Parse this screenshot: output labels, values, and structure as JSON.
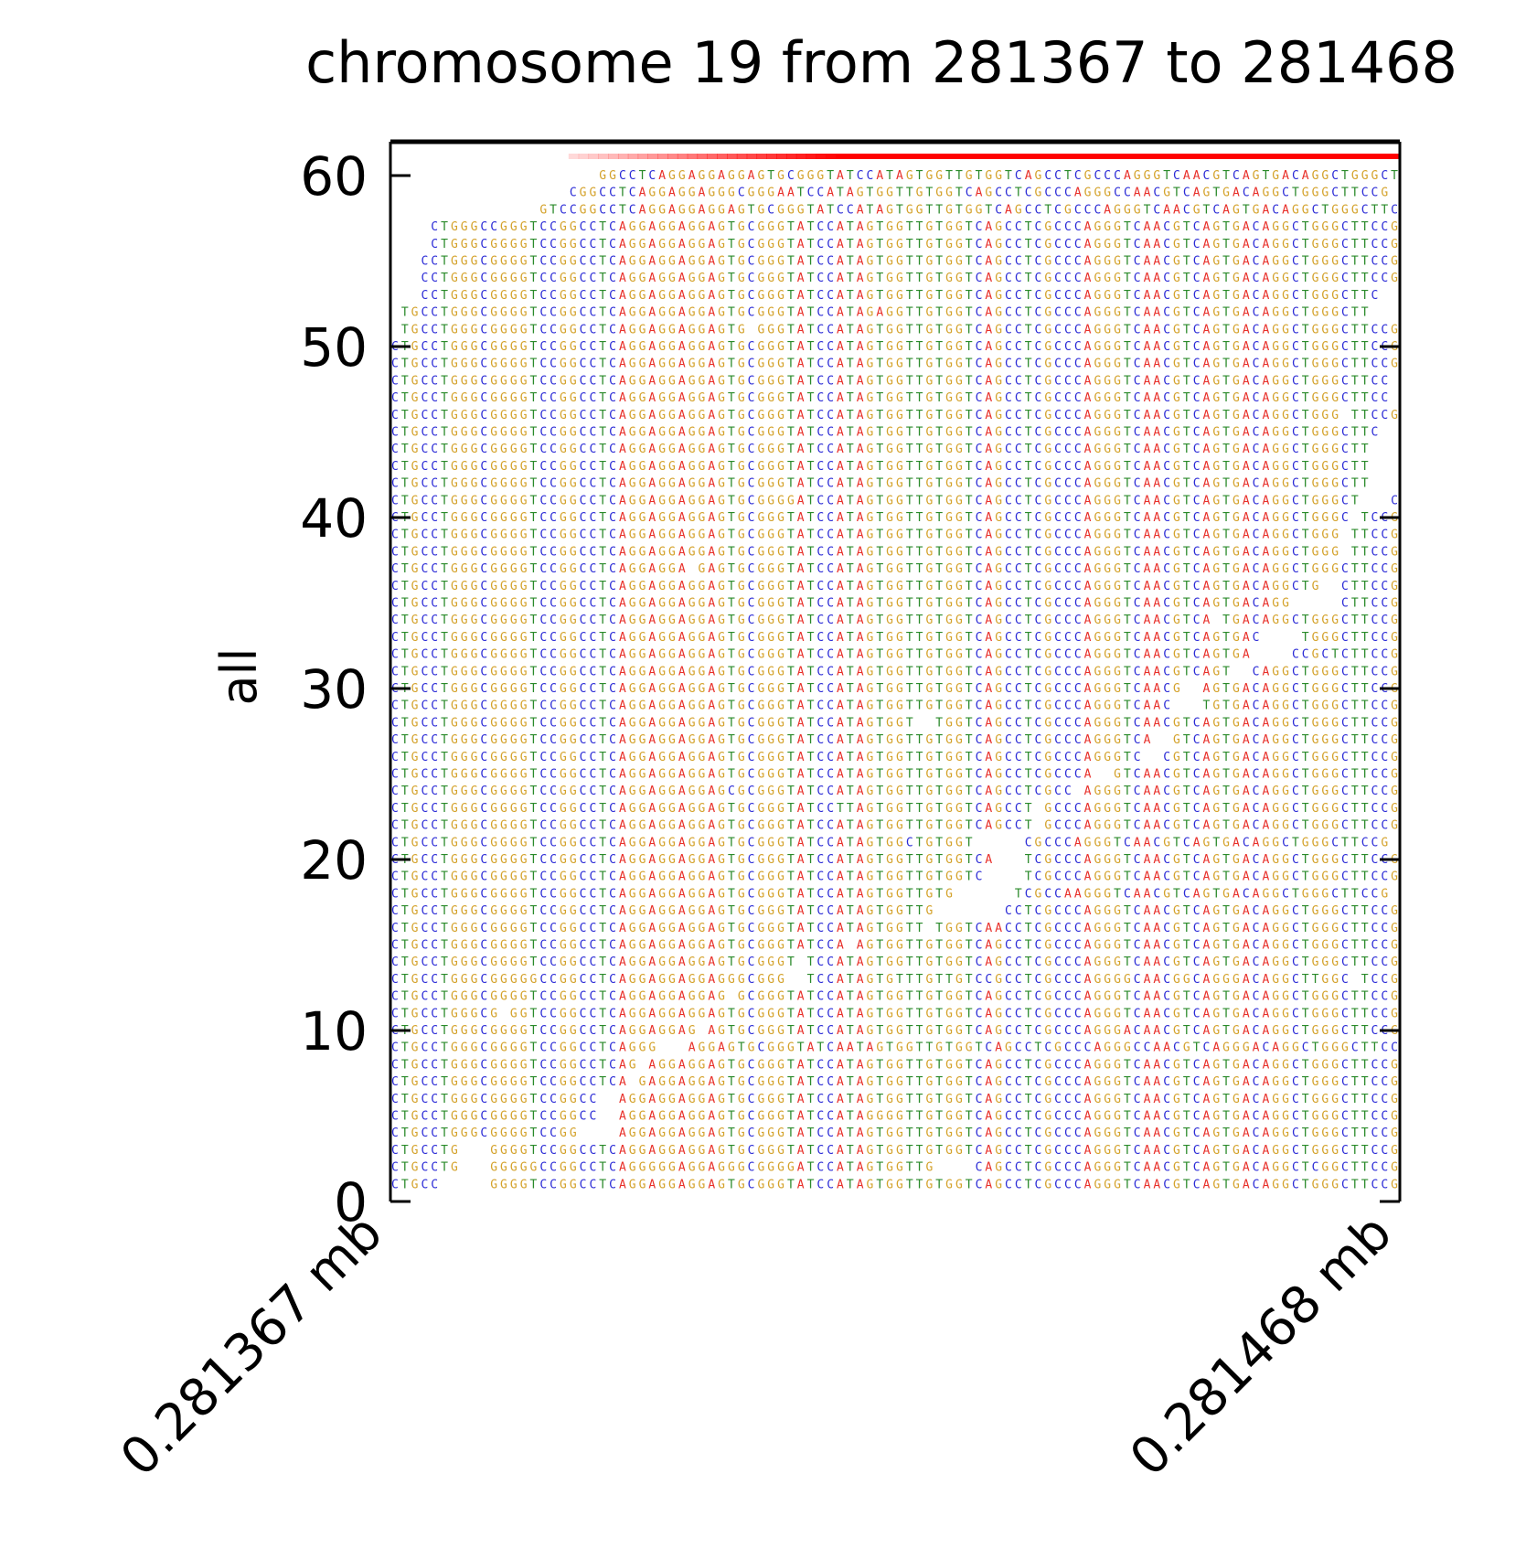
{
  "chart_data": {
    "type": "read-pileup",
    "title": "chromosome 19 from 281367 to 281468",
    "ylabel": "all",
    "xlabel": "",
    "x_ticks": [
      "0.281367 mb",
      "0.281468 mb"
    ],
    "xlim": [
      281367,
      281468
    ],
    "ylim": [
      0,
      62
    ],
    "y_ticks": [
      0,
      10,
      20,
      30,
      40,
      50,
      60
    ],
    "base_colors": {
      "A": "#e8302a",
      "C": "#2b2bd6",
      "G": "#d4a22b",
      "T": "#2a8a2a"
    },
    "coverage_color": "#ff0000",
    "coverage_ramp_start": 281385,
    "coverage_full_from": 281412,
    "reference": "CTGCCTGGGCGGGGTCCGGCCTCAGGAGGAGGAGTGCGGGTATCCATAGTGGTTGTGGTCAGCCTCGCCCAGGGTCAACGTCAGTGACAGGCTGGGCTTCCG",
    "reads": [
      {
        "row": 1,
        "seq": "CTGCC     GGGGTCCGGCCTCAGGAGGAGGAGTGCGGGTATCCATAGTGGTTGTGGTCAGCCTCGCCCAGGGTCAACGTCAGTGACAGGCTGGGCTTCCG"
      },
      {
        "row": 2,
        "seq": "CTGCCTG   GGGGGCCGGCCTCAGGGGGAGGAGGGCGGGGATCCATAGTGGTTG    CAGCCTCGCCCAGGGTCAACGTCAGTGACAGGCTCGGCTTCCG"
      },
      {
        "row": 3,
        "seq": "CTGCCTG   GGGGTCCGGCCTCAGGAGGAGGAGTGCGGGTATCCATAGTGGTTGTGGTCAGCCTCGCCCAGGGTCAACGTCAGTGACAGGCTGGGCTTCCG"
      },
      {
        "row": 4,
        "seq": "CTGCCTGGGCGGGGTCCGG    AGGAGGAGGAGTGCGGGTATCCATAGTGGTTGTGGTCAGCCTCGCCCAGGGTCAACGTCAGTGACAGGCTGGGCTTCCG"
      },
      {
        "row": 5,
        "seq": "CTGCCTGGGCGGGGTCCGGCC  AGGAGGAGGAGTGCGGGTATCCATAGGGGTTGTGGTCAGCCTCGCCCAGGGTCAACGTCAGTGACAGGCTGGGCTTCCG"
      },
      {
        "row": 6,
        "seq": "CTGCCTGGGCGGGGTCCGGCC  AGGAGGAGGAGTGCGGGTATCCATAGTGGTTGTGGTCAGCCTCGCCCAGGGTCAACGTCAGTGACAGGCTGGGCTTCCG"
      },
      {
        "row": 7,
        "seq": "CTGCCTGGGCGGGGTCCGGCCTCA GAGGAGGAGTGCGGGTATCCATAGTGGTTGTGGTCAGCCTCGCCCAGGGTCAACGTCAGTGACAGGCTGGGCTTCCG"
      },
      {
        "row": 8,
        "seq": "CTGCCTGGGCGGGGTCCGGCCTCAG AGGAGGAGTGCGGGTATCCATAGTGGTTGTGGTCAGCCTCGCCCAGGGTCAACGTCAGTGACAGGCTGGGCTTCCG"
      },
      {
        "row": 9,
        "seq": "CTGCCTGGGCGGGGTCCGGCCTCAGGG   AGGAGTGCGGGTATCAATAGTGGTTGTGGTCAGCCTCGCCCAGGGCCAACGTCAGGGACAGGCTGGGCTTCCG"
      },
      {
        "row": 10,
        "seq": "CTGCCTGGGCGGGGTCCGGCCTCAGGAGGAG AGTGCGGGTATCCATAGTGGTTGTGGTCAGCCTCGCCCAGGGACAACGTCAGTGACAGGCTGGGCTTCCG"
      },
      {
        "row": 11,
        "seq": "CTGCCTGGGCG GGTCCGGCCTCAGGAGGAGGAGTGCGGGTATCCATAGTGGTTGTGGTCAGCCTCGCCCAGGGTCAACGTCAGTGACAGGCTGGGCTTCCG"
      },
      {
        "row": 12,
        "seq": "CTGCCTGGGCGGGGTCCGGCCTCAGGAGGAGGAG GCGGGTATCCATAGTGGTTGTGGTCAGCCTCGCCCAGGGTCAACGTCAGTGACAGGCTGGGCTTCCG"
      },
      {
        "row": 13,
        "seq": "CTGCCTGGGCGGGGGCCGGCCTCAGGAGGAGGAGGGCGGG  TCCATAGTGTTTGTTGTCCGCCTCGCCCAGGGGCAACGGCAGGGACAGGCTTGGC TCCG"
      },
      {
        "row": 14,
        "seq": "CTGCCTGGGCGGGGTCCGGCCTCAGGAGGAGGAGTGCGGGT TCCATAGTGGTTGTGGTCAGCCTCGCCCAGGGTCAACGTCAGTGACAGGCTGGGCTTCCG"
      },
      {
        "row": 15,
        "seq": "CTGCCTGGGCGGGGTCCGGCCTCAGGAGGAGGAGTGCGGGTATCCA AGTGGTTGTGGTCAGCCTCGCCCAGGGTCAACGTCAGTGACAGGCTGGGCTTCCG"
      },
      {
        "row": 16,
        "seq": "CTGCCTGGGCGGGGTCCGGCCTCAGGAGGAGGAGTGCGGGTATCCATAGTGGTT TGGTCAACCTCGCCCAGGGTCAACGTCAGTGACAGGCTGGGCTTCCG"
      },
      {
        "row": 17,
        "seq": "CTGCCTGGGCGGGGTCCGGCCTCAGGAGGAGGAGTGCGGGTATCCATAGTGGTTG       CCTCGCCCAGGGTCAACGTCAGTGACAGGCTGGGCTTCCG"
      },
      {
        "row": 18,
        "seq": "CTGCCTGGGCGGGGTCCGGCCTCAGGAGGAGGAGTGCGGGTATCCATAGTGGTTGTG      TCGCCAAGGGTCAACGTCAGTGACAGGCTGGGCTTCCG"
      },
      {
        "row": 19,
        "seq": "CTGCCTGGGCGGGGTCCGGCCTCAGGAGGAGGAGTGCGGGTATCCATAGTGGTTGTGGTC    TCGCCCAGGGTCAACGTCAGTGACAGGCTGGGCTTCCG"
      },
      {
        "row": 20,
        "seq": "CTGCCTGGGCGGGGTCCGGCCTCAGGAGGAGGAGTGCGGGTATCCATAGTGGTTGTGGTCA   TCGCCCAGGGTCAACGTCAGTGACAGGCTGGGCTTCCG"
      },
      {
        "row": 21,
        "seq": "CTGCCTGGGCGGGGTCCGGCCTCAGGAGGAGGAGTGCGGGTATCCATAGTGGCTGTGGT     CGCCCAGGGTCAACGTCAGTGACAGGCTGGGCTTCCG"
      },
      {
        "row": 22,
        "seq": "CTGCCTGGGCGGGGTCCGGCCTCAGGAGGAGGAGTGCGGGTATCCATAGTGGTTGTGGTCAGCCT GCCCAGGGTCAACGTCAGTGACAGGCTGGGCTTCCG"
      },
      {
        "row": 23,
        "seq": "CTGCCTGGGCGGGGTCCGGCCTCAGGAGGAGGAGTGCGGGTATCCTTAGTGGTTGTGGTCAGCCT GCCCAGGGTCAACGTCAGTGACAGGCTGGGCTTCCG"
      },
      {
        "row": 24,
        "seq": "CTGCCTGGGCGGGGTCCGGCCTCAGGAGGAGGAGCGCGGGTATCCATAGTGGTTGTGGTCAGCCTCGCC AGGGTCAACGTCAGTGACAGGCTGGGCTTCCG"
      },
      {
        "row": 25,
        "seq": "CTGCCTGGGCGGGGTCCGGCCTCAGGAGGAGGAGTGCGGGTATCCATAGTGGTTGTGGTCAGCCTCGCCCA  GTCAACGTCAGTGACAGGCTGGGCTTCCG"
      },
      {
        "row": 26,
        "seq": "CTGCCTGGGCGGGGTCCGGCCTCAGGAGGAGGAGTGCGGGTATCCATAGTGGTTGTGGTCAGCCTCGCCCAGGGTC  CGTCAGTGACAGGCTGGGCTTCCG"
      },
      {
        "row": 27,
        "seq": "CTGCCTGGGCGGGGTCCGGCCTCAGGAGGAGGAGTGCGGGTATCCATAGTGGTTGTGGTCAGCCTCGCCCAGGGTCA  GTCAGTGACAGGCTGGGCTTCCG"
      },
      {
        "row": 28,
        "seq": "CTGCCTGGGCGGGGTCCGGCCTCAGGAGGAGGAGTGCGGGTATCCATAGTGGT  TGGTCAGCCTCGCCCAGGGTCAACGTCAGTGACAGGCTGGGCTTCCG"
      },
      {
        "row": 29,
        "seq": "CTGCCTGGGCGGGGTCCGGCCTCAGGAGGAGGAGTGCGGGTATCCATAGTGGTTGTGGTCAGCCTCGCCCAGGGTCAAC   TGTGACAGGCTGGGCTTCCG"
      },
      {
        "row": 30,
        "seq": "CTGCCTGGGCGGGGTCCGGCCTCAGGAGGAGGAGTGCGGGTATCCATAGTGGTTGTGGTCAGCCTCGCCCAGGGTCAACG  AGTGACAGGCTGGGCTTCCG"
      },
      {
        "row": 31,
        "seq": "CTGCCTGGGCGGGGTCCGGCCTCAGGAGGAGGAGTGCGGGTATCCATAGTGGTTGTGGTCAGCCTCGCCCAGGGTCAACGTCAGT  CAGGCTGGGCTTCCG"
      },
      {
        "row": 32,
        "seq": "CTGCCTGGGCGGGGTCCGGCCTCAGGAGGAGGAGTGCGGGTATCCATAGTGGTTGTGGTCAGCCTCGCCCAGGGTCAACGTCAGTGA    CCGCTCTTCCG"
      },
      {
        "row": 33,
        "seq": "CTGCCTGGGCGGGGTCCGGCCTCAGGAGGAGGAGTGCGGGTATCCATAGTGGTTGTGGTCAGCCTCGCCCAGGGTCAACGTCAGTGAC    TGGGCTTCCG"
      },
      {
        "row": 34,
        "seq": "CTGCCTGGGCGGGGTCCGGCCTCAGGAGGAGGAGTGCGGGTATCCATAGTGGTTGTGGTCAGCCTCGCCCAGGGTCAACGTCA TGACAGGCTGGGCTTCCG"
      },
      {
        "row": 35,
        "seq": "CTGCCTGGGCGGGGTCCGGCCTCAGGAGGAGGAGTGCGGGTATCCATAGTGGTTGTGGTCAGCCTCGCCCAGGGTCAACGTCAGTGACAGG     CTTCCG"
      },
      {
        "row": 36,
        "seq": "CTGCCTGGGCGGGGTCCGGCCTCAGGAGGAGGAGTGCGGGTATCCATAGTGGTTGTGGTCAGCCTCGCCCAGGGTCAACGTCAGTGACAGGCTG  CTTCCG"
      },
      {
        "row": 37,
        "seq": "CTGCCTGGGCGGGGTCCGGCCTCAGGAGGA GAGTGCGGGTATCCATAGTGGTTGTGGTCAGCCTCGCCCAGGGTCAACGTCAGTGACAGGCTGGGCTTCCG"
      },
      {
        "row": 38,
        "seq": "CTGCCTGGGCGGGGTCCGGCCTCAGGAGGAGGAGTGCGGGTATCCATAGTGGTTGTGGTCAGCCTCGCCCAGGGTCAACGTCAGTGACAGGCTGGG TTCCG"
      },
      {
        "row": 39,
        "seq": "CTGCCTGGGCGGGGTCCGGCCTCAGGAGGAGGAGTGCGGGTATCCATAGTGGTTGTGGTCAGCCTCGCCCAGGGTCAACGTCAGTGACAGGCTGGG TTCCG"
      },
      {
        "row": 40,
        "seq": "CTGCCTGGGCGGGGTCCGGCCTCAGGAGGAGGAGTGCGGGTATCCATAGTGGTTGTGGTCAGCCTCGCCCAGGGTCAACGTCAGTGACAGGCTGGGC TCCG"
      },
      {
        "row": 41,
        "seq": "CTGCCTGGGCGGGGTCCGGCCTCAGGAGGAGGAGTGCGGGGATCCATAGTGGTTGTGGTCAGCCTCGCCCAGGGTCAACGTCAGTGACAGGCTGGGCT   CG"
      },
      {
        "row": 42,
        "seq": "CTGCCTGGGCGGGGTCCGGCCTCAGGAGGAGGAGTGCGGGTATCCATAGTGGTTGTGGTCAGCCTCGCCCAGGGTCAACGTCAGTGACAGGCTGGGCTT"
      },
      {
        "row": 43,
        "seq": "CTGCCTGGGCGGGGTCCGGCCTCAGGAGGAGGAGTGCGGGTATCCATAGTGGTTGTGGTCAGCCTCGCCCAGGGTCAACGTCAGTGACAGGCTGGGCTT"
      },
      {
        "row": 44,
        "seq": "CTGCCTGGGCGGGGTCCGGCCTCAGGAGGAGGAGTGCGGGTATCCATAGTGGTTGTGGTCAGCCTCGCCCAGGGTCAACGTCAGTGACAGGCTGGGCTT"
      },
      {
        "row": 45,
        "seq": "CTGCCTGGGCGGGGTCCGGCCTCAGGAGGAGGAGTGCGGGTATCCATAGTGGTTGTGGTCAGCCTCGCCCAGGGTCAACGTCAGTGACAGGCTGGGCTTC"
      },
      {
        "row": 46,
        "seq": "CTGCCTGGGCGGGGTCCGGCCTCAGGAGGAGGAGTGCGGGTATCCATAGTGGTTGTGGTCAGCCTCGCCCAGGGTCAACGTCAGTGACAGGCTGGG TTCCG"
      },
      {
        "row": 47,
        "seq": "CTGCCTGGGCGGGGTCCGGCCTCAGGAGGAGGAGTGCGGGTATCCATAGTGGTTGTGGTCAGCCTCGCCCAGGGTCAACGTCAGTGACAGGCTGGGCTTCC"
      },
      {
        "row": 48,
        "seq": "CTGCCTGGGCGGGGTCCGGCCTCAGGAGGAGGAGTGCGGGTATCCATAGTGGTTGTGGTCAGCCTCGCCCAGGGTCAACGTCAGTGACAGGCTGGGCTTCC"
      },
      {
        "row": 49,
        "seq": "CTGCCTGGGCGGGGTCCGGCCTCAGGAGGAGGAGTGCGGGTATCCATAGTGGTTGTGGTCAGCCTCGCCCAGGGTCAACGTCAGTGACAGGCTGGGCTTCCG"
      },
      {
        "row": 50,
        "seq": "CTGCCTGGGCGGGGTCCGGCCTCAGGAGGAGGAGTGCGGGTATCCATAGTGGTTGTGGTCAGCCTCGCCCAGGGTCAACGTCAGTGACAGGCTGGGCTTCCG"
      },
      {
        "row": 51,
        "seq": " TGCCTGGGCGGGGTCCGGCCTCAGGAGGAGGAGTG GGGTATCCATAGTGGTTGTGGTCAGCCTCGCCCAGGGTCAACGTCAGTGACAGGCTGGGCTTCCG"
      },
      {
        "row": 52,
        "seq": " TGCCTGGGCGGGGTCCGGCCTCAGGAGGAGGAGTGCGGGTATCCATAGAGGTTGTGGTCAGCCTCGCCCAGGGTCAACGTCAGTGACAGGCTGGGCTT"
      },
      {
        "row": 53,
        "seq": "   CCTGGGCGGGGTCCGGCCTCAGGAGGAGGAGTGCGGGTATCCATAGTGGTTGTGGTCAGCCTCGCCCAGGGTCAACGTCAGTGACAGGCTGGGCTTC"
      },
      {
        "row": 54,
        "seq": "   CCTGGGCGGGGTCCGGCCTCAGGAGGAGGAGTGCGGGTATCCATAGTGGTTGTGGTCAGCCTCGCCCAGGGTCAACGTCAGTGACAGGCTGGGCTTCCG"
      },
      {
        "row": 55,
        "seq": "   CCTGGGCGGGGTCCGGCCTCAGGAGGAGGAGTGCGGGTATCCATAGTGGTTGTGGTCAGCCTCGCCCAGGGTCAACGTCAGTGACAGGCTGGGCTTCCG"
      },
      {
        "row": 56,
        "seq": "    CTGGGCGGGGTCCGGCCTCAGGAGGAGGAGTGCGGGTATCCATAGTGGTTGTGGTCAGCCTCGCCCAGGGTCAACGTCAGTGACAGGCTGGGCTTCCG"
      },
      {
        "row": 57,
        "seq": "    CTGGGCCGGGTCCGGCCTCAGGAGGAGGAGTGCGGGTATCCATAGTGGTTGTGGTCAGCCTCGCCCAGGGTCAACGTCAGTGACAGGCTGGGCTTCCG"
      },
      {
        "row": 58,
        "seq": "               GTCCGGCCTCAGGAGGAGGAGTGCGGGTATCCATAGTGGTTGTGGTCAGCCTCGCCCAGGGTCAACGTCAGTGACAGGCTGGGCTTCCG"
      },
      {
        "row": 59,
        "seq": "                  CGGCCTCAGGAGGAGGGCGGGAATCCATAGTGGTTGTGGTCAGCCTCGCCCAGGGCCAACGTCAGTGACAGGCTGGGCTTCCG"
      },
      {
        "row": 60,
        "seq": "                     GGCCTCAGGAGGAGGAGTGCGGGTATCCATAGTGGTTGTGGTCAGCCTCGCCCAGGGTCAACGTCAGTGACAGGCTGGGCTTCCG"
      }
    ]
  }
}
